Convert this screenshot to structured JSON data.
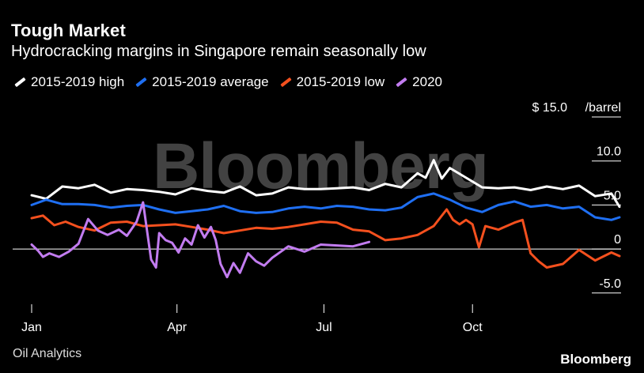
{
  "title": "Tough Market",
  "subtitle": "Hydrocracking margins in Singapore remain seasonally low",
  "legend": [
    {
      "label": "2015-2019 high",
      "color": "#ffffff"
    },
    {
      "label": "2015-2019 average",
      "color": "#1f6ff2"
    },
    {
      "label": "2015-2019 low",
      "color": "#f4501e"
    },
    {
      "label": "2020",
      "color": "#c27cf0"
    }
  ],
  "watermark": "Bloomberg",
  "source": "Oil Analytics",
  "brand": "Bloomberg",
  "chart_data": {
    "type": "line",
    "unit_label": "/barrel",
    "y_ticks": [
      {
        "value": 15,
        "label": "$ 15.0"
      },
      {
        "value": 10,
        "label": "10.0"
      },
      {
        "value": 5,
        "label": "5.0"
      },
      {
        "value": 0,
        "label": "0"
      },
      {
        "value": -5,
        "label": "-5.0"
      }
    ],
    "x_ticks": [
      {
        "value": 1,
        "label": "Jan"
      },
      {
        "value": 91,
        "label": "Apr"
      },
      {
        "value": 182,
        "label": "Jul"
      },
      {
        "value": 274,
        "label": "Oct"
      }
    ],
    "xlim": [
      1,
      366
    ],
    "ylim": [
      -5.2,
      15
    ],
    "zero_line": true,
    "series": [
      {
        "name": "2015-2019 high",
        "color": "#ffffff",
        "x": [
          1,
          10,
          20,
          30,
          40,
          50,
          60,
          70,
          80,
          90,
          100,
          110,
          120,
          130,
          140,
          150,
          160,
          170,
          180,
          190,
          200,
          210,
          220,
          230,
          240,
          245,
          250,
          255,
          260,
          270,
          280,
          290,
          300,
          310,
          320,
          330,
          340,
          350,
          360,
          365
        ],
        "y": [
          6.1,
          5.7,
          7.1,
          6.9,
          7.3,
          6.4,
          6.8,
          6.7,
          6.5,
          6.2,
          6.9,
          6.6,
          6.4,
          7.1,
          6.1,
          6.3,
          7.0,
          6.8,
          6.8,
          6.9,
          7.0,
          6.7,
          7.4,
          7.0,
          8.6,
          8.1,
          10.1,
          8.0,
          9.2,
          8.1,
          7.0,
          6.9,
          7.0,
          6.7,
          7.1,
          6.8,
          7.2,
          6.0,
          6.3,
          4.8
        ]
      },
      {
        "name": "2015-2019 average",
        "color": "#1f6ff2",
        "x": [
          1,
          10,
          20,
          30,
          40,
          50,
          60,
          70,
          80,
          90,
          100,
          110,
          120,
          130,
          140,
          150,
          160,
          170,
          180,
          190,
          200,
          210,
          220,
          230,
          240,
          250,
          260,
          270,
          280,
          290,
          300,
          310,
          320,
          330,
          340,
          350,
          360,
          365
        ],
        "y": [
          5.0,
          5.6,
          5.1,
          5.1,
          5.0,
          4.7,
          4.9,
          5.0,
          4.5,
          4.1,
          4.3,
          4.5,
          4.9,
          4.3,
          4.1,
          4.2,
          4.6,
          4.8,
          4.6,
          4.9,
          4.8,
          4.5,
          4.4,
          4.7,
          5.9,
          6.3,
          5.6,
          4.7,
          4.2,
          5.0,
          5.4,
          4.8,
          5.0,
          4.6,
          4.8,
          3.6,
          3.3,
          3.6
        ]
      },
      {
        "name": "2015-2019 low",
        "color": "#f4501e",
        "x": [
          1,
          8,
          15,
          22,
          30,
          40,
          50,
          60,
          70,
          80,
          90,
          100,
          110,
          120,
          130,
          140,
          150,
          160,
          170,
          180,
          190,
          200,
          210,
          220,
          230,
          240,
          250,
          258,
          262,
          266,
          270,
          274,
          278,
          282,
          290,
          300,
          305,
          310,
          315,
          320,
          330,
          340,
          350,
          360,
          365
        ],
        "y": [
          3.5,
          3.8,
          2.7,
          3.1,
          2.5,
          2.1,
          3.0,
          3.1,
          2.6,
          2.7,
          2.8,
          2.5,
          2.2,
          1.8,
          2.1,
          2.4,
          2.3,
          2.5,
          2.8,
          3.1,
          3.0,
          2.2,
          2.0,
          1.0,
          1.2,
          1.6,
          2.6,
          4.5,
          3.3,
          2.8,
          3.3,
          2.8,
          0.2,
          2.6,
          2.2,
          3.0,
          3.3,
          -0.5,
          -1.4,
          -2.1,
          -1.7,
          -0.1,
          -1.3,
          -0.4,
          -0.8
        ]
      },
      {
        "name": "2020",
        "color": "#c27cf0",
        "x": [
          1,
          5,
          8,
          12,
          18,
          24,
          30,
          36,
          42,
          48,
          55,
          60,
          66,
          70,
          75,
          78,
          80,
          84,
          88,
          92,
          96,
          100,
          104,
          108,
          112,
          115,
          118,
          122,
          126,
          130,
          135,
          140,
          145,
          150,
          160,
          170,
          180,
          190,
          200,
          210
        ],
        "y": [
          0.5,
          -0.2,
          -0.9,
          -0.5,
          -0.9,
          -0.3,
          0.6,
          3.4,
          2.1,
          1.6,
          2.2,
          1.5,
          3.1,
          5.3,
          -1.2,
          -2.1,
          1.8,
          1.0,
          0.7,
          -0.4,
          1.2,
          0.5,
          2.7,
          1.3,
          2.5,
          1.0,
          -1.7,
          -3.2,
          -1.6,
          -2.7,
          -0.5,
          -1.4,
          -1.9,
          -1.0,
          0.3,
          -0.3,
          0.5,
          0.4,
          0.3,
          0.8
        ]
      }
    ]
  }
}
